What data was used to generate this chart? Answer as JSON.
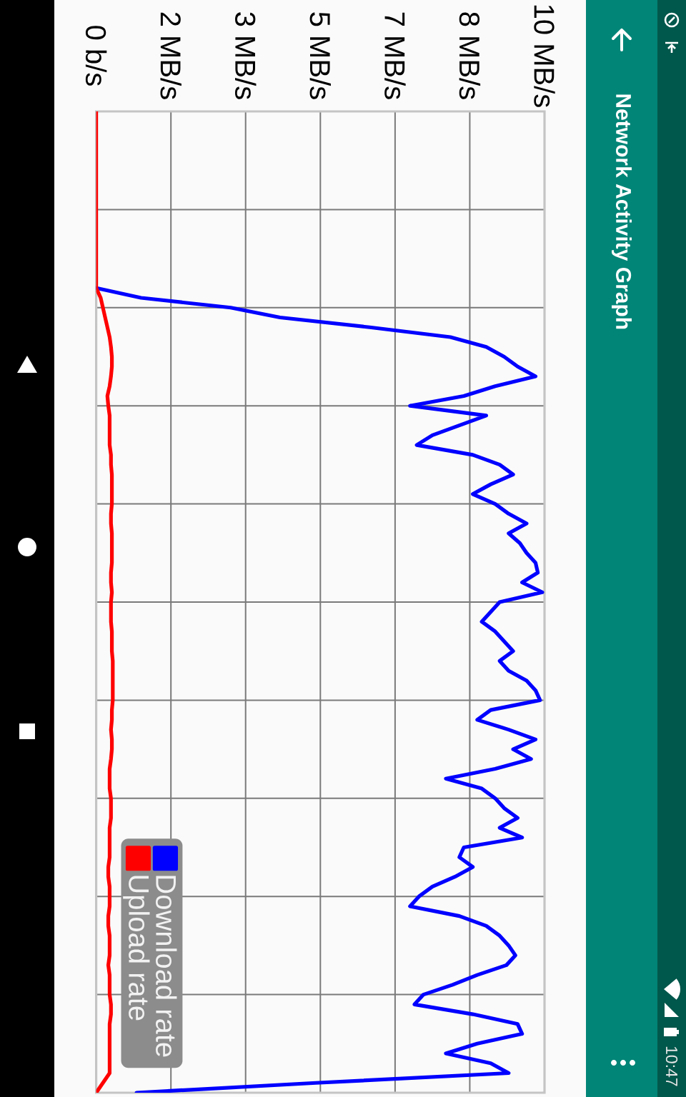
{
  "chart_data": {
    "type": "line",
    "title": "Network Activity Graph",
    "orientation": "horizontal",
    "categories": [
      null,
      null,
      null,
      null,
      null,
      null,
      null,
      null,
      null,
      null,
      null,
      null,
      null,
      null,
      null,
      null,
      null,
      null,
      null,
      null,
      null,
      null,
      null,
      null,
      null,
      null,
      null,
      null,
      null,
      null,
      null,
      null,
      null,
      null,
      null,
      null,
      null,
      null,
      null,
      null,
      null,
      null,
      null,
      null,
      null,
      null,
      null,
      null,
      null,
      null,
      null,
      null,
      null,
      null,
      null,
      null,
      null,
      null,
      null,
      null,
      null,
      null,
      null,
      null,
      null,
      null,
      null,
      null,
      null,
      null,
      null,
      null,
      null,
      null,
      null,
      null,
      null,
      null,
      null,
      null,
      null,
      null,
      null,
      null,
      null,
      null,
      null,
      null,
      null,
      null,
      null,
      null,
      null,
      null,
      null,
      null,
      null,
      null,
      null,
      null,
      null
    ],
    "series": [
      {
        "name": "Download rate",
        "color": "#0000ff",
        "values": [
          null,
          null,
          null,
          null,
          null,
          null,
          null,
          null,
          null,
          null,
          null,
          null,
          null,
          null,
          null,
          null,
          null,
          null,
          0,
          1.0,
          3.0,
          4.1,
          6.1,
          7.9,
          8.7,
          9.1,
          9.4,
          9.8,
          8.9,
          8.2,
          7.0,
          8.7,
          8.1,
          7.5,
          7.15,
          8.4,
          9.0,
          9.3,
          8.8,
          8.4,
          8.9,
          9.2,
          9.6,
          9.2,
          9.45,
          9.6,
          9.8,
          9.85,
          9.5,
          9.95,
          9.0,
          8.8,
          8.6,
          8.9,
          9.1,
          9.3,
          9.0,
          9.2,
          9.6,
          9.8,
          9.9,
          8.8,
          8.5,
          9.2,
          9.8,
          9.3,
          9.7,
          8.9,
          7.8,
          8.6,
          8.9,
          9.1,
          9.4,
          9.0,
          9.5,
          8.2,
          8.1,
          8.4,
          8.0,
          7.5,
          7.2,
          7.0,
          8.1,
          8.7,
          9.0,
          9.2,
          9.35,
          9.15,
          8.5,
          7.95,
          7.3,
          7.1,
          8.4,
          9.4,
          9.5,
          8.5,
          7.8,
          8.8,
          9.2,
          4.9,
          0.9
        ]
      },
      {
        "name": "Upload rate",
        "color": "#ff0000",
        "values": [
          0,
          0,
          0,
          0,
          0,
          0,
          0,
          0,
          0,
          0,
          0,
          0,
          0,
          0,
          0,
          0,
          0,
          0,
          0,
          0.1,
          0.15,
          0.2,
          0.25,
          0.3,
          0.33,
          0.35,
          0.35,
          0.33,
          0.3,
          0.25,
          0.27,
          0.3,
          0.3,
          0.3,
          0.3,
          0.33,
          0.33,
          0.35,
          0.35,
          0.35,
          0.35,
          0.33,
          0.33,
          0.35,
          0.35,
          0.35,
          0.35,
          0.33,
          0.33,
          0.35,
          0.33,
          0.33,
          0.33,
          0.35,
          0.35,
          0.35,
          0.37,
          0.37,
          0.37,
          0.37,
          0.37,
          0.35,
          0.35,
          0.33,
          0.35,
          0.35,
          0.33,
          0.3,
          0.3,
          0.3,
          0.33,
          0.33,
          0.33,
          0.3,
          0.3,
          0.3,
          0.3,
          0.27,
          0.27,
          0.3,
          0.3,
          0.3,
          0.27,
          0.27,
          0.3,
          0.3,
          0.3,
          0.27,
          0.3,
          0.3,
          0.3,
          0.33,
          0.33,
          0.3,
          0.3,
          0.3,
          0.3,
          0.3,
          0.3,
          0.15,
          0
        ]
      }
    ],
    "xlim": [
      0,
      10
    ],
    "xticks": [
      {
        "value": 0,
        "label": "0 b/s"
      },
      {
        "value": 1.667,
        "label": "2 MB/s"
      },
      {
        "value": 3.333,
        "label": "3 MB/s"
      },
      {
        "value": 5,
        "label": "5 MB/s"
      },
      {
        "value": 6.667,
        "label": "7 MB/s"
      },
      {
        "value": 8.333,
        "label": "8 MB/s"
      },
      {
        "value": 10,
        "label": "10 MB/s"
      }
    ],
    "tick_labels": "x",
    "grid": true,
    "legend": "bottom left",
    "line_style": "solid",
    "annotations": [
      "10:47"
    ]
  }
}
